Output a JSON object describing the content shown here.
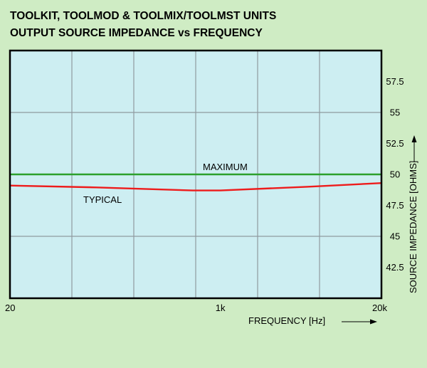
{
  "chart_data": {
    "type": "line",
    "title": [
      "TOOLKIT, TOOLMOD & TOOLMIX/TOOLMST UNITS",
      "OUTPUT SOURCE IMPEDANCE  vs FREQUENCY"
    ],
    "xlabel": "FREQUENCY  [Hz]",
    "ylabel": "SOURCE IMPEDANCE [OHMS]",
    "x_scale": "log",
    "xlim": [
      20,
      20000
    ],
    "ylim": [
      40,
      60
    ],
    "x_tick_values": [
      20,
      1000,
      20000
    ],
    "x_tick_labels": [
      "20",
      "1k",
      "20k"
    ],
    "y_ticks": [
      42.5,
      45,
      47.5,
      50,
      52.5,
      55,
      57.5
    ],
    "y_tick_labels": [
      "42.5",
      "45",
      "47.5",
      "50",
      "52.5",
      "55",
      "57.5"
    ],
    "grid": true,
    "series": [
      {
        "name": "MAXIMUM",
        "color": "#2ca02c",
        "points": [
          [
            20,
            50.0
          ],
          [
            20000,
            50.0
          ]
        ]
      },
      {
        "name": "TYPICAL",
        "color": "#ee1c1c",
        "points": [
          [
            20,
            49.1
          ],
          [
            100,
            48.95
          ],
          [
            300,
            48.8
          ],
          [
            600,
            48.7
          ],
          [
            1000,
            48.7
          ],
          [
            5000,
            49.0
          ],
          [
            20000,
            49.3
          ]
        ]
      }
    ],
    "colors": {
      "background": "#cfecc4",
      "plot_area": "#cdeef2",
      "grid": "#8f9aa0",
      "border": "#000000"
    }
  }
}
